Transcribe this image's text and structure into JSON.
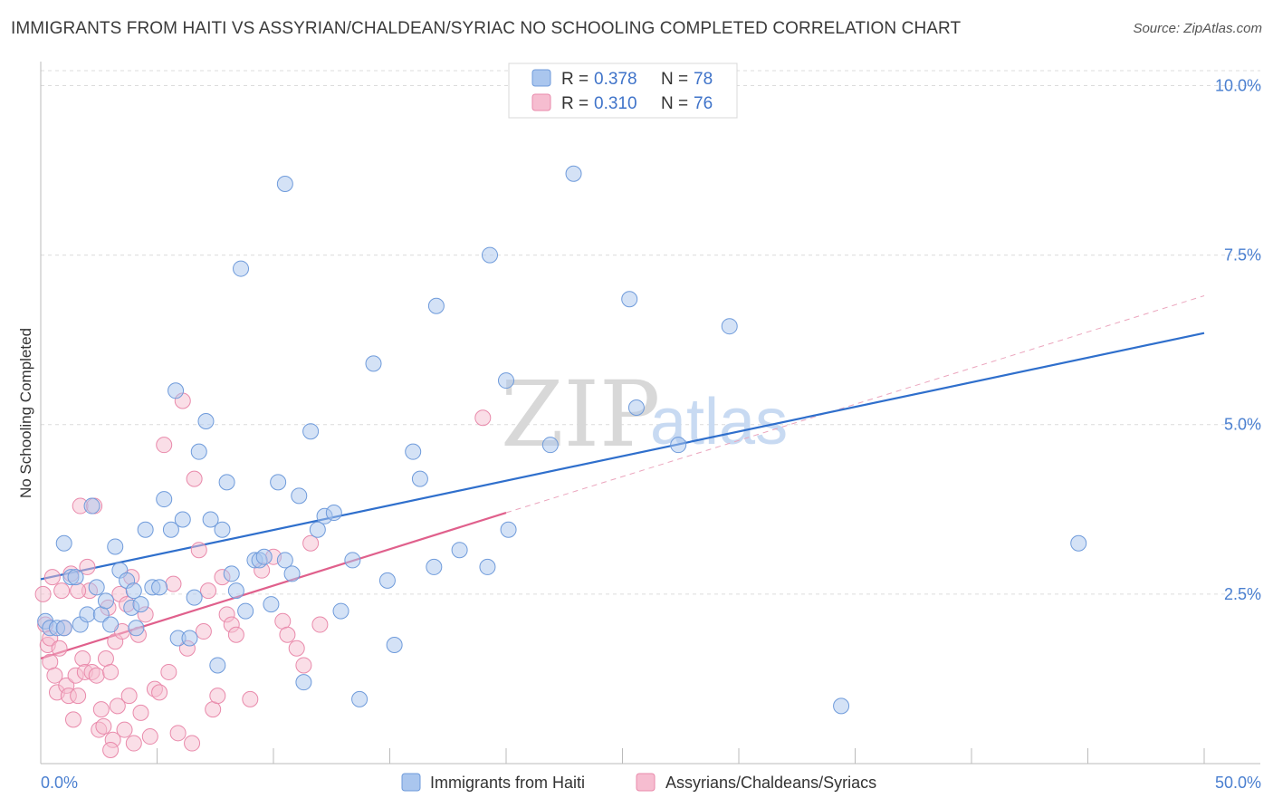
{
  "title": "IMMIGRANTS FROM HAITI VS ASSYRIAN/CHALDEAN/SYRIAC NO SCHOOLING COMPLETED CORRELATION CHART",
  "source": "Source: ZipAtlas.com",
  "watermark": {
    "zip": "ZIP",
    "atlas": "atlas"
  },
  "colors": {
    "blue_fill": "#aac6ee",
    "blue_stroke": "#6f9bdb",
    "blue_line": "#2f6fcc",
    "pink_fill": "#f6bdd0",
    "pink_stroke": "#e98aab",
    "pink_line": "#e0608c",
    "grid": "#dcdcdc",
    "tick_text": "#4a7fd0"
  },
  "legend": {
    "r_label": "R =",
    "n_label": "N =",
    "entries": [
      {
        "r": "0.378",
        "n": "78"
      },
      {
        "r": "0.310",
        "n": "76"
      }
    ]
  },
  "chart_data": {
    "type": "scatter",
    "title": "IMMIGRANTS FROM HAITI VS ASSYRIAN/CHALDEAN/SYRIAC NO SCHOOLING COMPLETED CORRELATION CHART",
    "xlabel": "",
    "ylabel": "No Schooling Completed",
    "xlim": [
      0,
      50
    ],
    "ylim": [
      0,
      10.3
    ],
    "x_tick_labels": [
      "0.0%",
      "50.0%"
    ],
    "y_ticks": [
      2.5,
      5.0,
      7.5,
      10.0
    ],
    "y_tick_labels": [
      "2.5%",
      "5.0%",
      "7.5%",
      "10.0%"
    ],
    "grid": true,
    "legend_position": "top-center",
    "series": [
      {
        "name": "Immigrants from Haiti",
        "r": 0.378,
        "n": 78,
        "trend": {
          "x": [
            0,
            50
          ],
          "y": [
            2.72,
            6.35
          ],
          "style": "solid"
        },
        "points": [
          [
            0.2,
            2.1
          ],
          [
            0.4,
            2.0
          ],
          [
            0.7,
            2.0
          ],
          [
            1.0,
            3.25
          ],
          [
            1.3,
            2.75
          ],
          [
            1.5,
            2.75
          ],
          [
            1.7,
            2.05
          ],
          [
            2.0,
            2.2
          ],
          [
            2.2,
            3.8
          ],
          [
            2.4,
            2.6
          ],
          [
            2.6,
            2.2
          ],
          [
            2.8,
            2.4
          ],
          [
            3.0,
            2.05
          ],
          [
            3.2,
            3.2
          ],
          [
            3.4,
            2.85
          ],
          [
            3.7,
            2.7
          ],
          [
            3.9,
            2.3
          ],
          [
            4.1,
            2.0
          ],
          [
            4.3,
            2.35
          ],
          [
            4.5,
            3.45
          ],
          [
            4.8,
            2.6
          ],
          [
            5.1,
            2.6
          ],
          [
            5.3,
            3.9
          ],
          [
            5.6,
            3.45
          ],
          [
            5.9,
            1.85
          ],
          [
            6.1,
            3.6
          ],
          [
            6.4,
            1.85
          ],
          [
            6.6,
            2.45
          ],
          [
            6.8,
            4.6
          ],
          [
            7.1,
            5.05
          ],
          [
            7.3,
            3.6
          ],
          [
            7.6,
            1.45
          ],
          [
            7.8,
            3.45
          ],
          [
            8.0,
            4.15
          ],
          [
            8.2,
            2.8
          ],
          [
            8.4,
            2.55
          ],
          [
            8.6,
            7.3
          ],
          [
            8.8,
            2.25
          ],
          [
            9.2,
            3.0
          ],
          [
            9.4,
            3.0
          ],
          [
            9.6,
            3.05
          ],
          [
            9.9,
            2.35
          ],
          [
            10.2,
            4.15
          ],
          [
            10.5,
            3.0
          ],
          [
            10.8,
            2.8
          ],
          [
            11.1,
            3.95
          ],
          [
            11.3,
            1.2
          ],
          [
            11.6,
            4.9
          ],
          [
            11.9,
            3.45
          ],
          [
            12.2,
            3.65
          ],
          [
            12.6,
            3.7
          ],
          [
            12.9,
            2.25
          ],
          [
            13.4,
            3.0
          ],
          [
            13.7,
            0.95
          ],
          [
            14.3,
            5.9
          ],
          [
            14.9,
            2.7
          ],
          [
            15.2,
            1.75
          ],
          [
            16.0,
            4.6
          ],
          [
            16.3,
            4.2
          ],
          [
            16.9,
            2.9
          ],
          [
            17.0,
            6.75
          ],
          [
            18.0,
            3.15
          ],
          [
            19.2,
            2.9
          ],
          [
            19.3,
            7.5
          ],
          [
            20.0,
            5.65
          ],
          [
            20.1,
            3.45
          ],
          [
            21.9,
            4.7
          ],
          [
            22.9,
            8.7
          ],
          [
            25.3,
            6.85
          ],
          [
            25.6,
            5.25
          ],
          [
            27.4,
            4.7
          ],
          [
            29.6,
            6.45
          ],
          [
            34.4,
            0.85
          ],
          [
            44.6,
            3.25
          ],
          [
            5.8,
            5.5
          ],
          [
            10.5,
            8.55
          ],
          [
            4.0,
            2.55
          ],
          [
            1.0,
            2.0
          ]
        ]
      },
      {
        "name": "Assyrians/Chaldeans/Syriacs",
        "r": 0.31,
        "n": 76,
        "trend": {
          "x": [
            0,
            20
          ],
          "y": [
            1.55,
            3.7
          ],
          "style": "solid",
          "extension": {
            "x": [
              20,
              50
            ],
            "y": [
              3.7,
              6.9
            ],
            "style": "dashed"
          }
        },
        "points": [
          [
            0.1,
            2.5
          ],
          [
            0.2,
            2.05
          ],
          [
            0.3,
            1.75
          ],
          [
            0.4,
            1.5
          ],
          [
            0.4,
            1.85
          ],
          [
            0.5,
            2.75
          ],
          [
            0.6,
            1.3
          ],
          [
            0.7,
            1.05
          ],
          [
            0.8,
            1.7
          ],
          [
            0.9,
            2.55
          ],
          [
            1.0,
            2.0
          ],
          [
            1.1,
            1.15
          ],
          [
            1.2,
            1.0
          ],
          [
            1.3,
            2.8
          ],
          [
            1.4,
            0.65
          ],
          [
            1.5,
            1.3
          ],
          [
            1.6,
            1.0
          ],
          [
            1.7,
            3.8
          ],
          [
            1.8,
            1.55
          ],
          [
            1.9,
            1.35
          ],
          [
            2.0,
            2.9
          ],
          [
            2.1,
            2.55
          ],
          [
            2.2,
            1.35
          ],
          [
            2.3,
            3.8
          ],
          [
            2.4,
            1.3
          ],
          [
            2.5,
            0.5
          ],
          [
            2.6,
            0.8
          ],
          [
            2.7,
            0.55
          ],
          [
            2.8,
            1.55
          ],
          [
            2.9,
            2.3
          ],
          [
            3.0,
            1.35
          ],
          [
            3.1,
            0.35
          ],
          [
            3.2,
            1.8
          ],
          [
            3.3,
            0.85
          ],
          [
            3.4,
            2.5
          ],
          [
            3.5,
            1.95
          ],
          [
            3.6,
            0.5
          ],
          [
            3.7,
            2.35
          ],
          [
            3.8,
            1.0
          ],
          [
            3.9,
            2.75
          ],
          [
            4.0,
            0.3
          ],
          [
            4.2,
            1.9
          ],
          [
            4.3,
            0.75
          ],
          [
            4.5,
            2.2
          ],
          [
            4.7,
            0.4
          ],
          [
            4.9,
            1.1
          ],
          [
            5.1,
            1.05
          ],
          [
            5.3,
            4.7
          ],
          [
            5.5,
            1.35
          ],
          [
            5.7,
            2.65
          ],
          [
            5.9,
            0.45
          ],
          [
            6.1,
            5.35
          ],
          [
            6.3,
            1.7
          ],
          [
            6.5,
            0.3
          ],
          [
            6.6,
            4.2
          ],
          [
            6.8,
            3.15
          ],
          [
            7.0,
            1.95
          ],
          [
            7.2,
            2.55
          ],
          [
            7.4,
            0.8
          ],
          [
            7.6,
            1.0
          ],
          [
            7.8,
            2.75
          ],
          [
            8.0,
            2.2
          ],
          [
            8.2,
            2.05
          ],
          [
            8.4,
            1.9
          ],
          [
            9.0,
            0.95
          ],
          [
            9.5,
            2.85
          ],
          [
            10.0,
            3.05
          ],
          [
            10.4,
            2.1
          ],
          [
            10.6,
            1.9
          ],
          [
            11.0,
            1.7
          ],
          [
            11.3,
            1.45
          ],
          [
            11.6,
            3.25
          ],
          [
            12.0,
            2.05
          ],
          [
            19.0,
            5.1
          ],
          [
            3.0,
            0.2
          ],
          [
            1.6,
            2.55
          ]
        ]
      }
    ]
  },
  "bottom_legend": [
    "Immigrants from Haiti",
    "Assyrians/Chaldeans/Syriacs"
  ]
}
